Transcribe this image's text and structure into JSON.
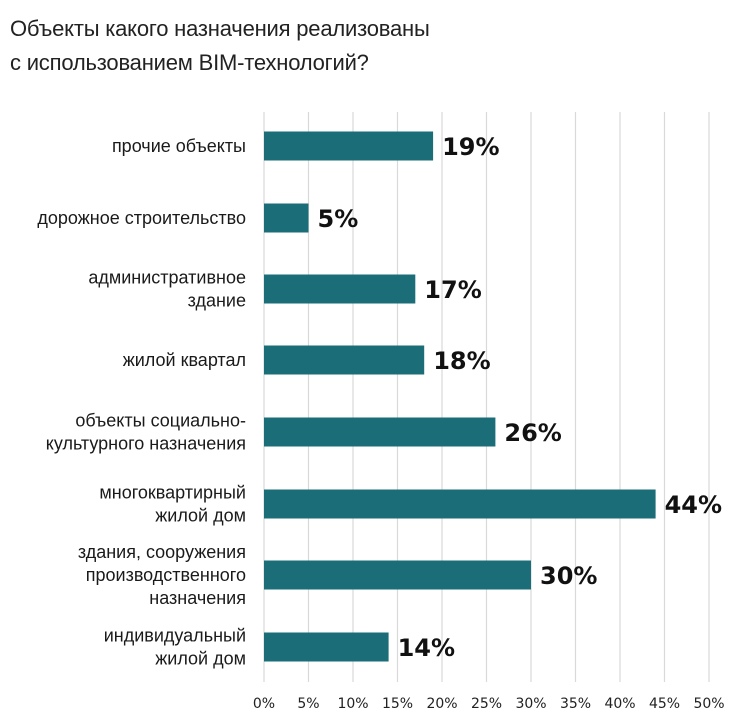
{
  "chart_data": {
    "type": "bar",
    "orientation": "horizontal",
    "title_lines": [
      "Объекты какого назначения реализованы",
      "с использованием BIM-технологий?"
    ],
    "categories": [
      [
        "прочие объекты"
      ],
      [
        "дорожное строительство"
      ],
      [
        "административное",
        "здание"
      ],
      [
        "жилой квартал"
      ],
      [
        "объекты социально-",
        "культурного назначения"
      ],
      [
        "многоквартирный",
        "жилой дом"
      ],
      [
        "здания, сооружения",
        "производственного",
        "назначения"
      ],
      [
        "индивидуальный",
        "жилой дом"
      ]
    ],
    "values": [
      19,
      5,
      17,
      18,
      26,
      44,
      30,
      14
    ],
    "value_labels": [
      "19%",
      "5%",
      "17%",
      "18%",
      "26%",
      "44%",
      "30%",
      "14%"
    ],
    "x_ticks": [
      "0%",
      "5%",
      "10%",
      "15%",
      "20%",
      "25%",
      "30%",
      "35%",
      "40%",
      "45%",
      "50%"
    ],
    "xlim": [
      0,
      50
    ],
    "grid": "vertical",
    "legend": "none",
    "colors": {
      "bar": "#1b6d78",
      "grid": "#d9d9d9",
      "text": "#1a1a1a"
    }
  }
}
